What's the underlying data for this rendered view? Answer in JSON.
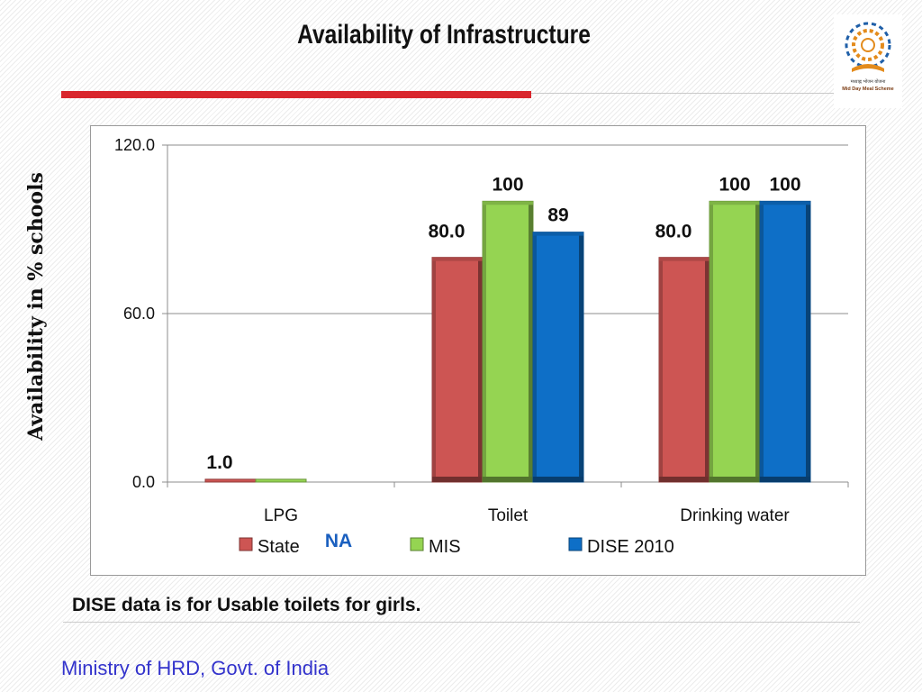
{
  "slide": {
    "title": "Availability of Infrastructure",
    "note": "DISE data is for Usable toilets for girls.",
    "footer": "Ministry of HRD, Govt. of India",
    "logo": {
      "line1": "मध्याह्न भोजन योजना",
      "line2": "Mid Day Meal Scheme",
      "icon": "mid-day-meal-scheme-logo"
    },
    "colors": {
      "title_rule": "#d9262d",
      "footer_text": "#3333cc"
    }
  },
  "chart_data": {
    "type": "bar",
    "title": "",
    "xlabel": "",
    "ylabel": "Availability in % schools",
    "ylim": [
      0,
      120
    ],
    "yticks": [
      "0.0",
      "60.0",
      "120.0"
    ],
    "grid": true,
    "legend_position": "bottom",
    "categories": [
      "LPG",
      "Toilet",
      "Drinking water"
    ],
    "series": [
      {
        "name": "State",
        "color": "#cd5553",
        "values": [
          1.0,
          80.0,
          80.0
        ],
        "labels": [
          "1.0",
          "80.0",
          "80.0"
        ]
      },
      {
        "name": "MIS",
        "color": "#95d452",
        "values": [
          1,
          100,
          100
        ],
        "labels": [
          "",
          "100",
          "100"
        ]
      },
      {
        "name": "DISE 2010",
        "color": "#0e6fc7",
        "values": [
          null,
          89,
          100
        ],
        "labels": [
          "",
          "89",
          "100"
        ]
      }
    ],
    "annotations": [
      {
        "text": "NA",
        "near": "LPG DISE 2010",
        "color": "#1a5fbf"
      }
    ]
  }
}
